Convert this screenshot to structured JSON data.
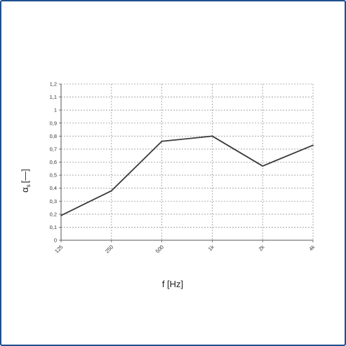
{
  "chart_data": {
    "type": "line",
    "categories": [
      "125",
      "250",
      "500",
      "1k",
      "2k",
      "4k"
    ],
    "series": [
      {
        "values": [
          0.19,
          0.38,
          0.76,
          0.8,
          0.57,
          0.73
        ]
      }
    ],
    "y_tick_labels": [
      "0",
      "0,1",
      "0,2",
      "0,3",
      "0,4",
      "0,5",
      "0,6",
      "0,7",
      "0,8",
      "0,9",
      "1",
      "1,1",
      "1,2"
    ],
    "ylim": [
      0,
      1.2
    ],
    "xlabel": "f [Hz]",
    "ylabel": "αs [—]",
    "ylabel_main": "α",
    "ylabel_sub": "s",
    "ylabel_unit": "[—]",
    "grid": true,
    "line_color": "#3a3a3a",
    "grid_color": "#9a9a9a",
    "frame_color": "#1f4f8f"
  }
}
